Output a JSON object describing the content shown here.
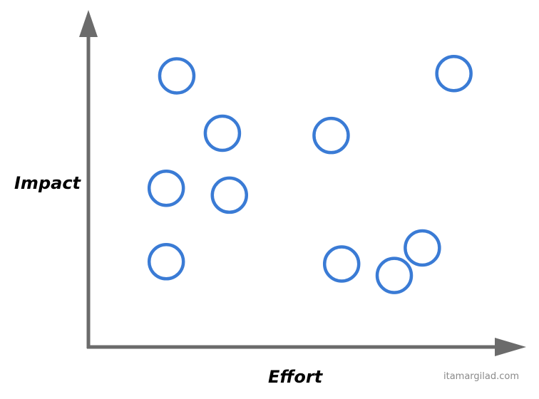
{
  "chart_data": {
    "type": "scatter",
    "xlabel": "Effort",
    "ylabel": "Impact",
    "xlim": [
      0,
      10
    ],
    "ylim": [
      0,
      10
    ],
    "grid": false,
    "ticks": false,
    "points": [
      {
        "x": 1.3,
        "y": 9.8
      },
      {
        "x": 9.2,
        "y": 9.9
      },
      {
        "x": 2.6,
        "y": 7.3
      },
      {
        "x": 5.7,
        "y": 7.2
      },
      {
        "x": 1.0,
        "y": 4.9
      },
      {
        "x": 2.8,
        "y": 4.6
      },
      {
        "x": 1.0,
        "y": 1.7
      },
      {
        "x": 6.0,
        "y": 1.6
      },
      {
        "x": 7.5,
        "y": 1.1
      },
      {
        "x": 8.3,
        "y": 2.3
      }
    ]
  },
  "colors": {
    "axis": "#6b6b6b",
    "marker": "#3a7bd5"
  },
  "watermark": "itamargilad.com"
}
